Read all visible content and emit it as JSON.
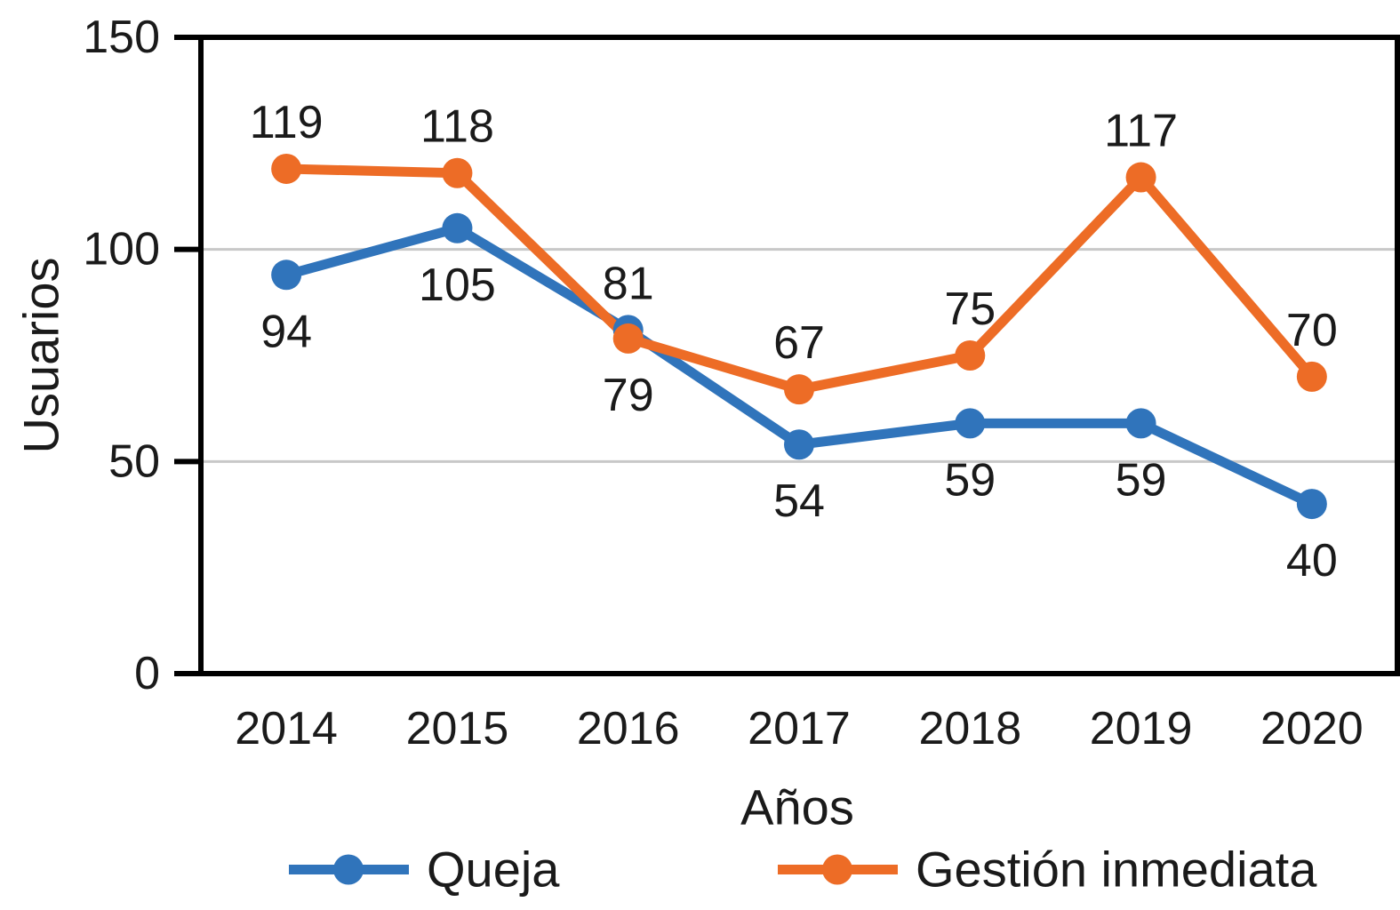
{
  "chart_data": {
    "type": "line",
    "title": "",
    "xlabel": "Años",
    "ylabel": "Usuarios",
    "categories": [
      "2014",
      "2015",
      "2016",
      "2017",
      "2018",
      "2019",
      "2020"
    ],
    "series": [
      {
        "name": "Queja",
        "color": "#3074BB",
        "values": [
          94,
          105,
          81,
          54,
          59,
          59,
          40
        ],
        "label_side": [
          "below",
          "below",
          "above",
          "below",
          "below",
          "below",
          "below"
        ]
      },
      {
        "name": "Gestión inmediata",
        "color": "#ED6C26",
        "values": [
          119,
          118,
          79,
          67,
          75,
          117,
          70
        ],
        "label_side": [
          "above",
          "above",
          "below",
          "above",
          "above",
          "above",
          "above"
        ]
      }
    ],
    "ylim": [
      0,
      150
    ],
    "yticks": [
      0,
      50,
      100,
      150
    ],
    "grid": "horizontal",
    "legend_position": "bottom"
  },
  "colors": {
    "axis": "#000000",
    "gridline": "#c8c8c8",
    "text": "#1a1a1a"
  }
}
